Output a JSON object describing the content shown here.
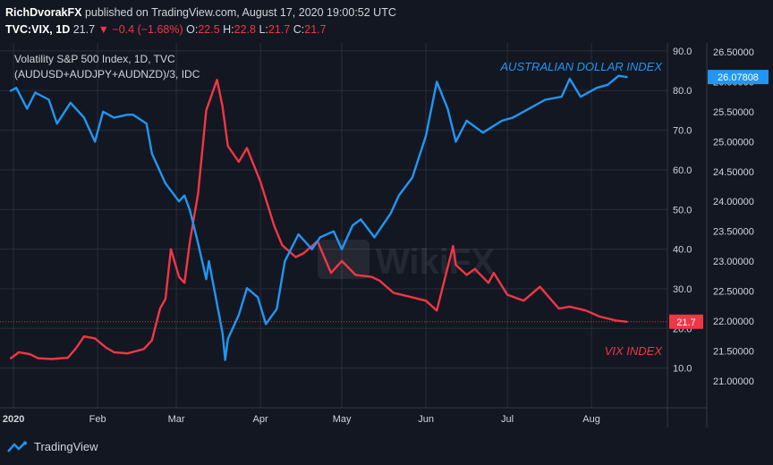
{
  "header": {
    "author": "RichDvorakFX",
    "published_text": "published on TradingView.com, August 17, 2020 19:00:52 UTC",
    "symbol": "TVC:VIX, 1D",
    "last": "21.7",
    "change": "−0.4 (−1.68%)",
    "o_label": "O:",
    "o_value": "22.5",
    "h_label": "H:",
    "h_value": "22.8",
    "l_label": "L:",
    "l_value": "21.7",
    "c_label": "C:",
    "c_value": "21.7"
  },
  "footer": {
    "brand": "TradingView",
    "watermark": "WikiFX"
  },
  "colors": {
    "background": "#131722",
    "vix": "#f23645",
    "aud": "#2196f3",
    "grid": "#2a2e39",
    "text": "#d1d4dc"
  },
  "chart_data": {
    "type": "line",
    "title": "Volatility S&P 500 Index, 1D, TVC",
    "subtitle": "(AUDUSD+AUDJPY+AUDNZD)/3, IDC",
    "x_tick_labels": [
      "2020",
      "Feb",
      "Mar",
      "Apr",
      "May",
      "Jun",
      "Jul",
      "Aug"
    ],
    "y_left_ticks": [
      "10.0",
      "20.0",
      "30.0",
      "40.0",
      "50.0",
      "60.0",
      "70.0",
      "80.0",
      "90.0"
    ],
    "y_left_range": [
      0,
      92
    ],
    "y_right_ticks": [
      "21.00000",
      "21.50000",
      "22.00000",
      "22.50000",
      "23.00000",
      "23.50000",
      "24.00000",
      "24.50000",
      "25.00000",
      "25.50000",
      "26.00000",
      "26.50000"
    ],
    "y_right_range": [
      20.55,
      26.65
    ],
    "grid": true,
    "series": [
      {
        "name": "VIX INDEX",
        "axis": "left",
        "last_label": "21.7",
        "x": [
          "2019-12-31",
          "2020-01-03",
          "2020-01-07",
          "2020-01-10",
          "2020-01-15",
          "2020-01-21",
          "2020-01-24",
          "2020-01-27",
          "2020-01-31",
          "2020-02-04",
          "2020-02-07",
          "2020-02-12",
          "2020-02-18",
          "2020-02-21",
          "2020-02-24",
          "2020-02-26",
          "2020-02-28",
          "2020-03-02",
          "2020-03-04",
          "2020-03-06",
          "2020-03-09",
          "2020-03-12",
          "2020-03-16",
          "2020-03-18",
          "2020-03-20",
          "2020-03-24",
          "2020-03-27",
          "2020-04-01",
          "2020-04-06",
          "2020-04-09",
          "2020-04-14",
          "2020-04-17",
          "2020-04-22",
          "2020-04-27",
          "2020-05-01",
          "2020-05-06",
          "2020-05-12",
          "2020-05-15",
          "2020-05-20",
          "2020-05-26",
          "2020-06-01",
          "2020-06-05",
          "2020-06-11",
          "2020-06-12",
          "2020-06-16",
          "2020-06-19",
          "2020-06-24",
          "2020-06-26",
          "2020-07-01",
          "2020-07-07",
          "2020-07-13",
          "2020-07-20",
          "2020-07-24",
          "2020-07-30",
          "2020-08-04",
          "2020-08-10",
          "2020-08-14"
        ],
        "y": [
          12.5,
          14.0,
          13.5,
          12.5,
          12.3,
          12.6,
          15.0,
          18.0,
          17.5,
          15.2,
          14.0,
          13.7,
          14.8,
          17.0,
          25.0,
          27.5,
          40.0,
          33.0,
          31.5,
          42.0,
          54.0,
          75.0,
          82.7,
          76.0,
          66.0,
          62.0,
          65.5,
          57.0,
          46.0,
          41.0,
          38.0,
          39.0,
          42.0,
          34.0,
          37.0,
          33.5,
          33.0,
          32.0,
          29.0,
          28.0,
          27.0,
          24.5,
          40.8,
          36.0,
          33.5,
          35.0,
          31.5,
          34.0,
          28.5,
          27.0,
          30.5,
          25.0,
          25.5,
          24.5,
          23.0,
          22.0,
          21.7
        ]
      },
      {
        "name": "AUSTRALIAN DOLLAR INDEX",
        "axis": "right",
        "last_label": "26.07808",
        "x": [
          "2019-12-31",
          "2020-01-02",
          "2020-01-06",
          "2020-01-09",
          "2020-01-14",
          "2020-01-17",
          "2020-01-22",
          "2020-01-27",
          "2020-01-31",
          "2020-02-03",
          "2020-02-07",
          "2020-02-12",
          "2020-02-14",
          "2020-02-19",
          "2020-02-21",
          "2020-02-26",
          "2020-03-02",
          "2020-03-04",
          "2020-03-06",
          "2020-03-09",
          "2020-03-12",
          "2020-03-13",
          "2020-03-18",
          "2020-03-19",
          "2020-03-20",
          "2020-03-24",
          "2020-03-27",
          "2020-03-31",
          "2020-04-03",
          "2020-04-07",
          "2020-04-10",
          "2020-04-15",
          "2020-04-20",
          "2020-04-23",
          "2020-04-28",
          "2020-05-01",
          "2020-05-05",
          "2020-05-08",
          "2020-05-13",
          "2020-05-19",
          "2020-05-22",
          "2020-05-27",
          "2020-06-01",
          "2020-06-05",
          "2020-06-09",
          "2020-06-12",
          "2020-06-16",
          "2020-06-22",
          "2020-06-29",
          "2020-07-03",
          "2020-07-09",
          "2020-07-15",
          "2020-07-21",
          "2020-07-24",
          "2020-07-28",
          "2020-08-03",
          "2020-08-07",
          "2020-08-11",
          "2020-08-14"
        ],
        "y": [
          25.85,
          25.9,
          25.55,
          25.82,
          25.7,
          25.3,
          25.65,
          25.4,
          25.0,
          25.5,
          25.4,
          25.45,
          25.45,
          25.3,
          24.8,
          24.3,
          24.0,
          24.1,
          23.85,
          23.3,
          22.7,
          23.0,
          21.8,
          21.35,
          21.7,
          22.1,
          22.55,
          22.4,
          21.95,
          22.2,
          23.0,
          23.45,
          23.2,
          23.4,
          23.5,
          23.2,
          23.6,
          23.7,
          23.4,
          23.8,
          24.1,
          24.4,
          25.1,
          26.0,
          25.55,
          25.0,
          25.35,
          25.15,
          25.35,
          25.4,
          25.55,
          25.7,
          25.75,
          26.05,
          25.75,
          25.9,
          25.95,
          26.1,
          26.08
        ]
      }
    ],
    "annotations": [
      "AUSTRALIAN DOLLAR INDEX",
      "VIX INDEX"
    ]
  }
}
